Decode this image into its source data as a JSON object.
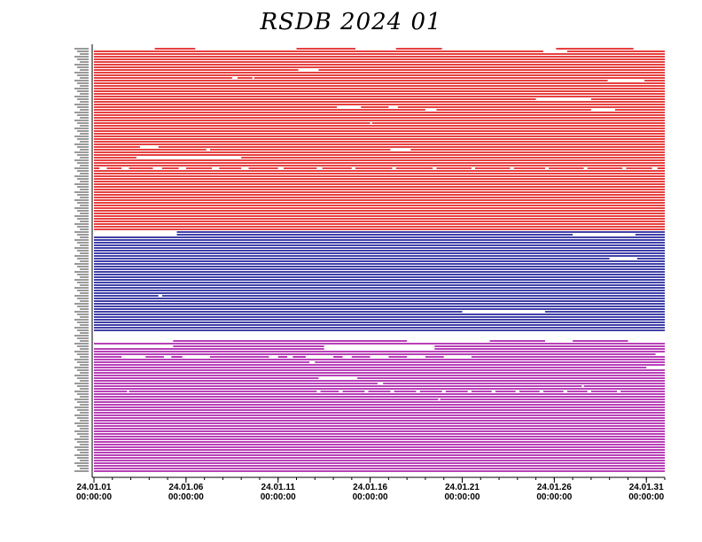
{
  "title": "RSDB  2024  01",
  "chart_data": {
    "type": "timeline",
    "title": "RSDB  2024  01",
    "x_ticks": [
      {
        "day": 1,
        "date": "24.01.01",
        "time": "00:00:00"
      },
      {
        "day": 6,
        "date": "24.01.06",
        "time": "00:00:00"
      },
      {
        "day": 11,
        "date": "24.01.11",
        "time": "00:00:00"
      },
      {
        "day": 16,
        "date": "24.01.16",
        "time": "00:00:00"
      },
      {
        "day": 21,
        "date": "24.01.21",
        "time": "00:00:00"
      },
      {
        "day": 26,
        "date": "24.01.26",
        "time": "00:00:00"
      },
      {
        "day": 31,
        "date": "24.01.31",
        "time": "00:00:00"
      }
    ],
    "xlim": [
      1,
      32
    ],
    "groups": [
      {
        "color": "#dd0000",
        "row_count": 69,
        "gaps": [
          {
            "row": 0,
            "start": 1.0,
            "end": 4.3
          },
          {
            "row": 0,
            "start": 6.5,
            "end": 12.0
          },
          {
            "row": 0,
            "start": 15.2,
            "end": 17.4
          },
          {
            "row": 0,
            "start": 19.9,
            "end": 26.1
          },
          {
            "row": 0,
            "start": 30.3,
            "end": 32.0
          },
          {
            "row": 1,
            "start": 25.4,
            "end": 26.7
          },
          {
            "row": 8,
            "start": 12.1,
            "end": 13.2
          },
          {
            "row": 11,
            "start": 8.5,
            "end": 8.8
          },
          {
            "row": 11,
            "start": 9.6,
            "end": 9.7
          },
          {
            "row": 12,
            "start": 28.9,
            "end": 30.9
          },
          {
            "row": 19,
            "start": 25.0,
            "end": 28.0
          },
          {
            "row": 22,
            "start": 14.2,
            "end": 15.5
          },
          {
            "row": 22,
            "start": 17.0,
            "end": 17.5
          },
          {
            "row": 23,
            "start": 19.0,
            "end": 19.6
          },
          {
            "row": 23,
            "start": 28.0,
            "end": 29.3
          },
          {
            "row": 28,
            "start": 16.0,
            "end": 16.1
          },
          {
            "row": 37,
            "start": 3.5,
            "end": 4.5
          },
          {
            "row": 38,
            "start": 7.1,
            "end": 7.3
          },
          {
            "row": 38,
            "start": 17.1,
            "end": 18.2
          },
          {
            "row": 41,
            "start": 3.3,
            "end": 9.0
          },
          {
            "row": 45,
            "start": 1.3,
            "end": 1.7
          },
          {
            "row": 45,
            "start": 2.5,
            "end": 2.9
          },
          {
            "row": 45,
            "start": 4.2,
            "end": 4.7
          },
          {
            "row": 45,
            "start": 5.6,
            "end": 6.0
          },
          {
            "row": 45,
            "start": 7.4,
            "end": 7.8
          },
          {
            "row": 45,
            "start": 9.0,
            "end": 9.4
          },
          {
            "row": 45,
            "start": 11.0,
            "end": 11.3
          },
          {
            "row": 45,
            "start": 13.1,
            "end": 13.4
          },
          {
            "row": 45,
            "start": 15.0,
            "end": 15.2
          },
          {
            "row": 45,
            "start": 17.2,
            "end": 17.4
          },
          {
            "row": 45,
            "start": 19.4,
            "end": 19.6
          },
          {
            "row": 45,
            "start": 21.5,
            "end": 21.7
          },
          {
            "row": 45,
            "start": 23.6,
            "end": 23.8
          },
          {
            "row": 45,
            "start": 25.5,
            "end": 25.7
          },
          {
            "row": 45,
            "start": 27.6,
            "end": 27.8
          },
          {
            "row": 45,
            "start": 29.7,
            "end": 29.9
          },
          {
            "row": 45,
            "start": 31.3,
            "end": 31.6
          }
        ]
      },
      {
        "color": "#00008b",
        "row_count": 40,
        "gaps": [
          {
            "row": 0,
            "start": 1.0,
            "end": 5.5
          },
          {
            "row": 1,
            "start": 1.0,
            "end": 5.5
          },
          {
            "row": 1,
            "start": 27.0,
            "end": 30.4
          },
          {
            "row": 10,
            "start": 29.0,
            "end": 30.5
          },
          {
            "row": 24,
            "start": 4.5,
            "end": 4.7
          },
          {
            "row": 30,
            "start": 21.0,
            "end": 25.5
          },
          {
            "row": 38,
            "start": 1.0,
            "end": 32.0
          },
          {
            "row": 39,
            "start": 1.0,
            "end": 32.0
          }
        ]
      },
      {
        "color": "#a000a0",
        "row_count": 51,
        "gaps": [
          {
            "row": 0,
            "start": 1.0,
            "end": 32.0
          },
          {
            "row": 1,
            "start": 1.0,
            "end": 5.3
          },
          {
            "row": 1,
            "start": 18.0,
            "end": 22.5
          },
          {
            "row": 1,
            "start": 25.5,
            "end": 27.0
          },
          {
            "row": 1,
            "start": 30.0,
            "end": 32.0
          },
          {
            "row": 3,
            "start": 1.0,
            "end": 5.3
          },
          {
            "row": 3,
            "start": 13.5,
            "end": 19.5
          },
          {
            "row": 3,
            "start": 18.5,
            "end": 19.0
          },
          {
            "row": 4,
            "start": 13.5,
            "end": 19.5
          },
          {
            "row": 6,
            "start": 31.5,
            "end": 32.0
          },
          {
            "row": 7,
            "start": 2.5,
            "end": 3.8
          },
          {
            "row": 7,
            "start": 4.8,
            "end": 5.2
          },
          {
            "row": 7,
            "start": 5.8,
            "end": 7.3
          },
          {
            "row": 7,
            "start": 10.5,
            "end": 11.0
          },
          {
            "row": 7,
            "start": 11.5,
            "end": 11.8
          },
          {
            "row": 7,
            "start": 12.5,
            "end": 14.0
          },
          {
            "row": 7,
            "start": 14.5,
            "end": 15.0
          },
          {
            "row": 7,
            "start": 16.0,
            "end": 17.0
          },
          {
            "row": 7,
            "start": 18.0,
            "end": 19.0
          },
          {
            "row": 7,
            "start": 20.0,
            "end": 21.5
          },
          {
            "row": 9,
            "start": 12.7,
            "end": 13.0
          },
          {
            "row": 11,
            "start": 31.0,
            "end": 32.0
          },
          {
            "row": 15,
            "start": 13.2,
            "end": 15.3
          },
          {
            "row": 17,
            "start": 16.4,
            "end": 16.7
          },
          {
            "row": 18,
            "start": 27.5,
            "end": 27.6
          },
          {
            "row": 20,
            "start": 2.8,
            "end": 2.9
          },
          {
            "row": 20,
            "start": 13.1,
            "end": 13.3
          },
          {
            "row": 20,
            "start": 14.3,
            "end": 14.5
          },
          {
            "row": 20,
            "start": 15.7,
            "end": 15.9
          },
          {
            "row": 20,
            "start": 17.1,
            "end": 17.3
          },
          {
            "row": 20,
            "start": 18.5,
            "end": 18.7
          },
          {
            "row": 20,
            "start": 19.9,
            "end": 20.1
          },
          {
            "row": 20,
            "start": 21.3,
            "end": 21.5
          },
          {
            "row": 20,
            "start": 22.6,
            "end": 22.8
          },
          {
            "row": 20,
            "start": 23.9,
            "end": 24.1
          },
          {
            "row": 20,
            "start": 25.2,
            "end": 25.4
          },
          {
            "row": 20,
            "start": 26.5,
            "end": 26.7
          },
          {
            "row": 20,
            "start": 27.8,
            "end": 28.0
          },
          {
            "row": 20,
            "start": 29.4,
            "end": 29.6
          },
          {
            "row": 23,
            "start": 19.7,
            "end": 19.8
          }
        ]
      }
    ]
  }
}
